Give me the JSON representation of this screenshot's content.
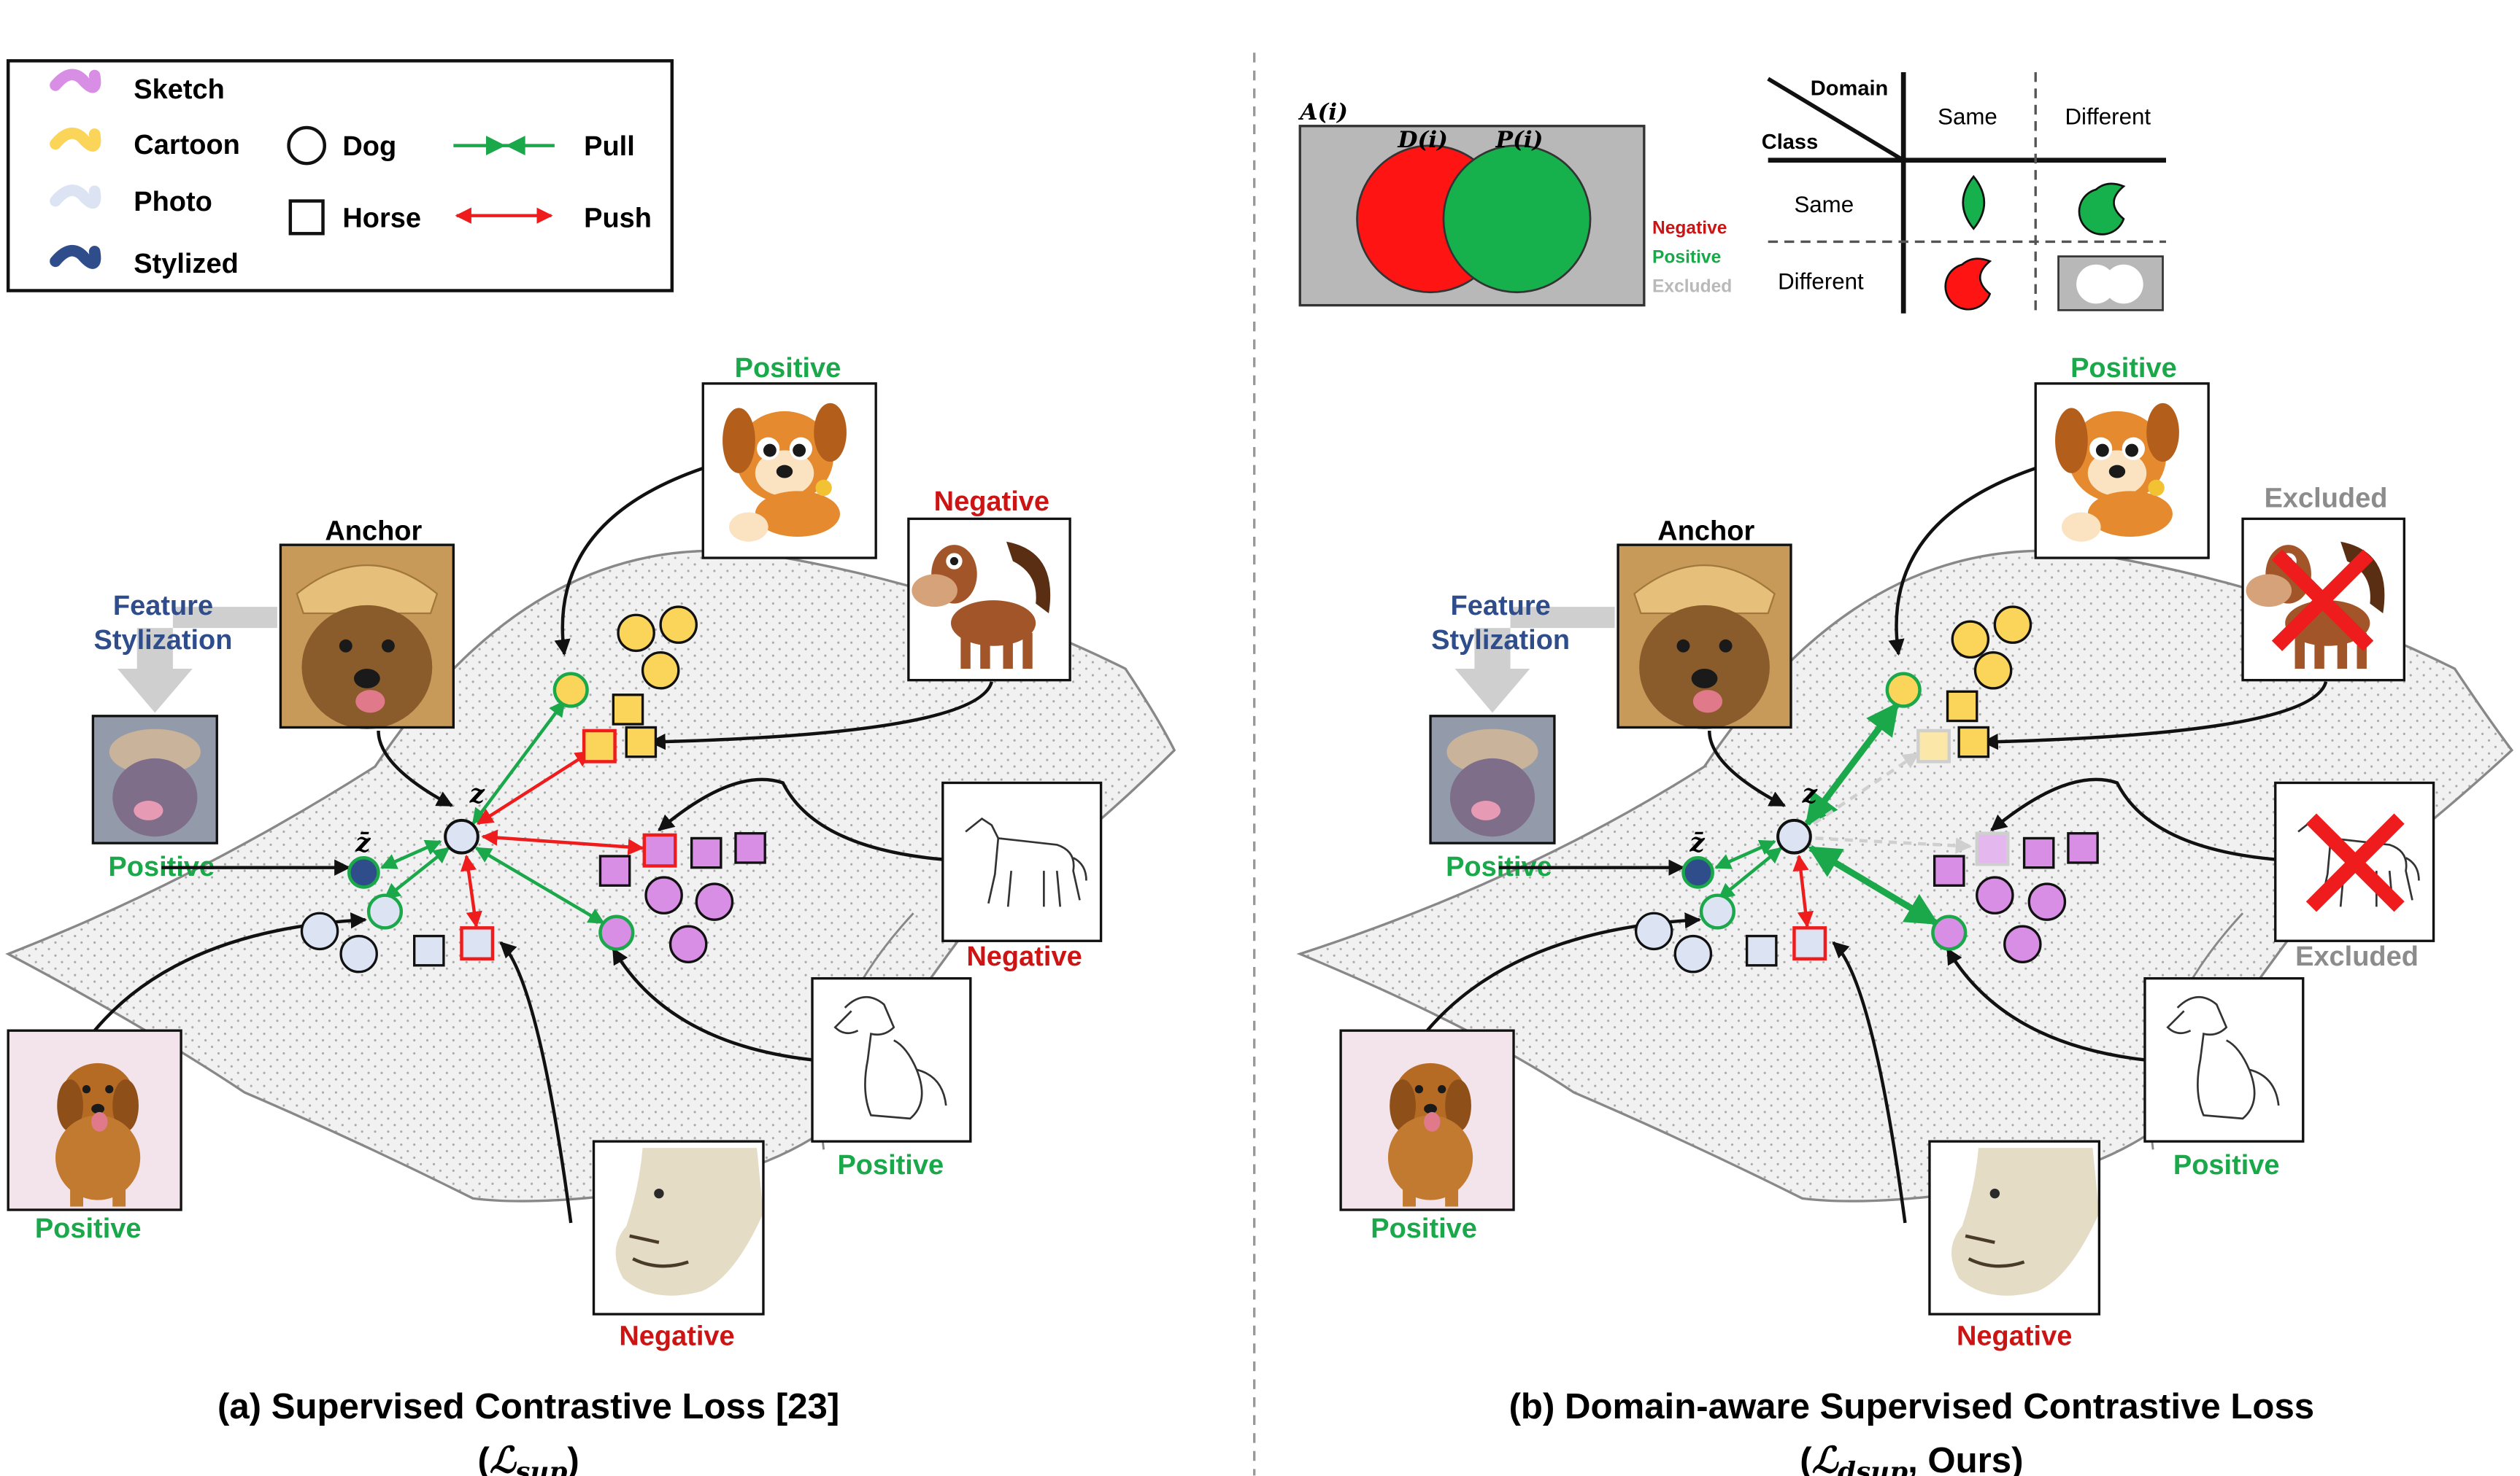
{
  "legend": {
    "domains": [
      {
        "label": "Sketch",
        "color": "#d98ee6"
      },
      {
        "label": "Cartoon",
        "color": "#fbd55a"
      },
      {
        "label": "Photo",
        "color": "#dce4f4"
      },
      {
        "label": "Stylized",
        "color": "#2f4d8a"
      }
    ],
    "shapes": [
      {
        "label": "Dog",
        "shape": "circle"
      },
      {
        "label": "Horse",
        "shape": "square"
      }
    ],
    "arrows": [
      {
        "label": "Pull",
        "color": "#1aa84a"
      },
      {
        "label": "Push",
        "color": "#ee1c1c"
      }
    ]
  },
  "colors": {
    "positive": "#1aa84a",
    "negative": "#cc1414",
    "excluded": "#9a9a9a",
    "stylization": "#2f4d8a",
    "cartoon": "#fbd55a",
    "sketch": "#d98ee6",
    "photo": "#dce4f4",
    "stylized": "#2f4d8a"
  },
  "venn": {
    "A": "A(i)",
    "D": "D(i)",
    "P": "P(i)",
    "key": [
      "Negative",
      "Positive",
      "Excluded"
    ]
  },
  "matrix": {
    "corner_domain": "Domain",
    "corner_class": "Class",
    "cols": [
      "Same",
      "Different"
    ],
    "rows": [
      "Same",
      "Different"
    ]
  },
  "panel_a": {
    "anchor": "Anchor",
    "stylization": [
      "Feature",
      "Stylization"
    ],
    "z": "z",
    "zbar": "z̄",
    "labels": {
      "cartoon_dog": "Positive",
      "cartoon_horse": "Negative",
      "stylized": "Positive",
      "sketch_horse": "Negative",
      "sketch_dog": "Positive",
      "photo_dog": "Positive",
      "photo_horse": "Negative"
    },
    "caption_line1": "(a)  Supervised Contrastive Loss [23]",
    "caption_loss": "ℒ",
    "caption_sub": "sup"
  },
  "panel_b": {
    "anchor": "Anchor",
    "stylization": [
      "Feature",
      "Stylization"
    ],
    "z": "z",
    "zbar": "z̄",
    "labels": {
      "cartoon_dog": "Positive",
      "cartoon_horse": "Excluded",
      "stylized": "Positive",
      "sketch_horse": "Excluded",
      "sketch_dog": "Positive",
      "photo_dog": "Positive",
      "photo_horse": "Negative"
    },
    "caption_line1": "(b) Domain-aware Supervised Contrastive Loss",
    "caption_loss": "ℒ",
    "caption_sub": "dsup",
    "caption_tail": ", Ours"
  }
}
